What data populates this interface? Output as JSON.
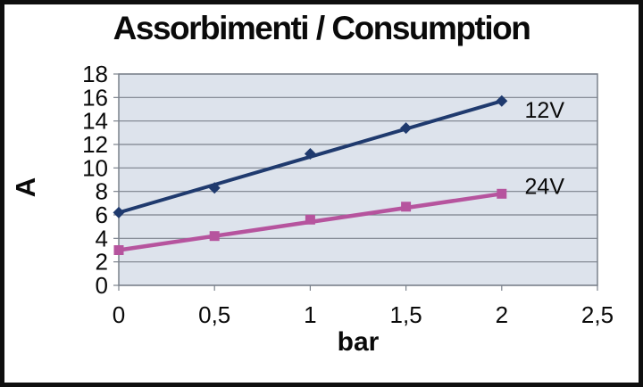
{
  "title": "Assorbimenti / Consumption",
  "chart_data": {
    "type": "line",
    "title": "Assorbimenti / Consumption",
    "xlabel": "bar",
    "ylabel": "A",
    "xlim": [
      0,
      2.5
    ],
    "ylim": [
      0,
      18
    ],
    "grid": "horizontal",
    "legend_position": "inline-right",
    "plot_bg": "#dde3ec",
    "grid_color": "#7b828c",
    "text_color": "#0a0a0a",
    "x": [
      0,
      0.5,
      1,
      1.5,
      2
    ],
    "x_ticks": [
      0,
      0.5,
      1,
      1.5,
      2,
      2.5
    ],
    "x_tick_labels": [
      "0",
      "0,5",
      "1",
      "1,5",
      "2",
      "2,5"
    ],
    "y_ticks": [
      0,
      2,
      4,
      6,
      8,
      10,
      12,
      14,
      16,
      18
    ],
    "y_tick_labels": [
      "0",
      "2",
      "4",
      "6",
      "8",
      "10",
      "12",
      "14",
      "16",
      "18"
    ],
    "series": [
      {
        "name": "12V",
        "color": "#1f3a6e",
        "marker": "diamond",
        "line_width": 4,
        "values": [
          6.2,
          8.3,
          11.2,
          13.4,
          15.7
        ],
        "label": {
          "x": 2.12,
          "y": 14.95
        }
      },
      {
        "name": "24V",
        "color": "#b6549e",
        "marker": "square",
        "line_width": 4.5,
        "values": [
          3.0,
          4.2,
          5.6,
          6.7,
          7.8
        ],
        "label": {
          "x": 2.12,
          "y": 8.45
        }
      }
    ]
  }
}
